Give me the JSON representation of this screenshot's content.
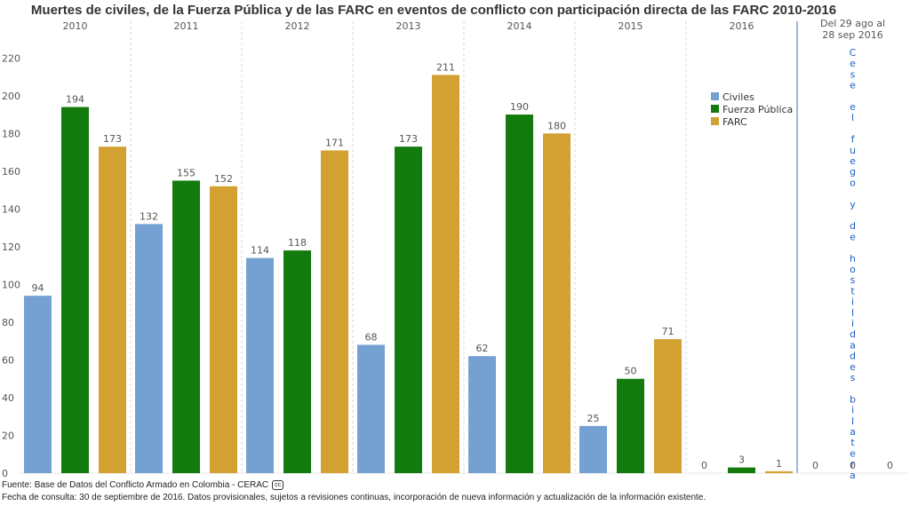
{
  "chart_data": {
    "type": "bar",
    "title": "Muertes de civiles, de la Fuerza Pública y de las FARC en eventos de conflicto con participación directa de las FARC 2010-2016",
    "categories": [
      "2010",
      "2011",
      "2012",
      "2013",
      "2014",
      "2015",
      "2016",
      "Del 29 ago al 28 sep 2016"
    ],
    "category_lines": [
      [
        "2010"
      ],
      [
        "2011"
      ],
      [
        "2012"
      ],
      [
        "2013"
      ],
      [
        "2014"
      ],
      [
        "2015"
      ],
      [
        "2016"
      ],
      [
        "Del 29 ago al",
        "28 sep 2016"
      ]
    ],
    "series": [
      {
        "name": "Civiles",
        "color": "#75a1d2",
        "values": [
          94,
          132,
          114,
          68,
          62,
          25,
          0,
          0
        ]
      },
      {
        "name": "Fuerza Pública",
        "color": "#137b0d",
        "values": [
          194,
          155,
          118,
          173,
          190,
          50,
          3,
          0
        ]
      },
      {
        "name": "FARC",
        "color": "#d2a132",
        "values": [
          173,
          152,
          171,
          211,
          180,
          71,
          1,
          0
        ]
      }
    ],
    "ylim": [
      0,
      230
    ],
    "yticks": [
      0,
      20,
      40,
      60,
      80,
      100,
      120,
      140,
      160,
      180,
      200,
      220
    ],
    "legend_position": "top-right",
    "annotation": "Cese el fuego y de hostilidades bilateral",
    "annotation_color": "#1f5fc2"
  },
  "footer": {
    "source": "Fuente: Base de Datos del Conflicto Armado en Colombia - CERAC",
    "license_badge": "cc",
    "note": "Fecha de consulta: 30 de septiembre de 2016. Datos provisionales, sujetos a revisiones continuas, incorporación de nueva información y actualización de la información existente."
  }
}
